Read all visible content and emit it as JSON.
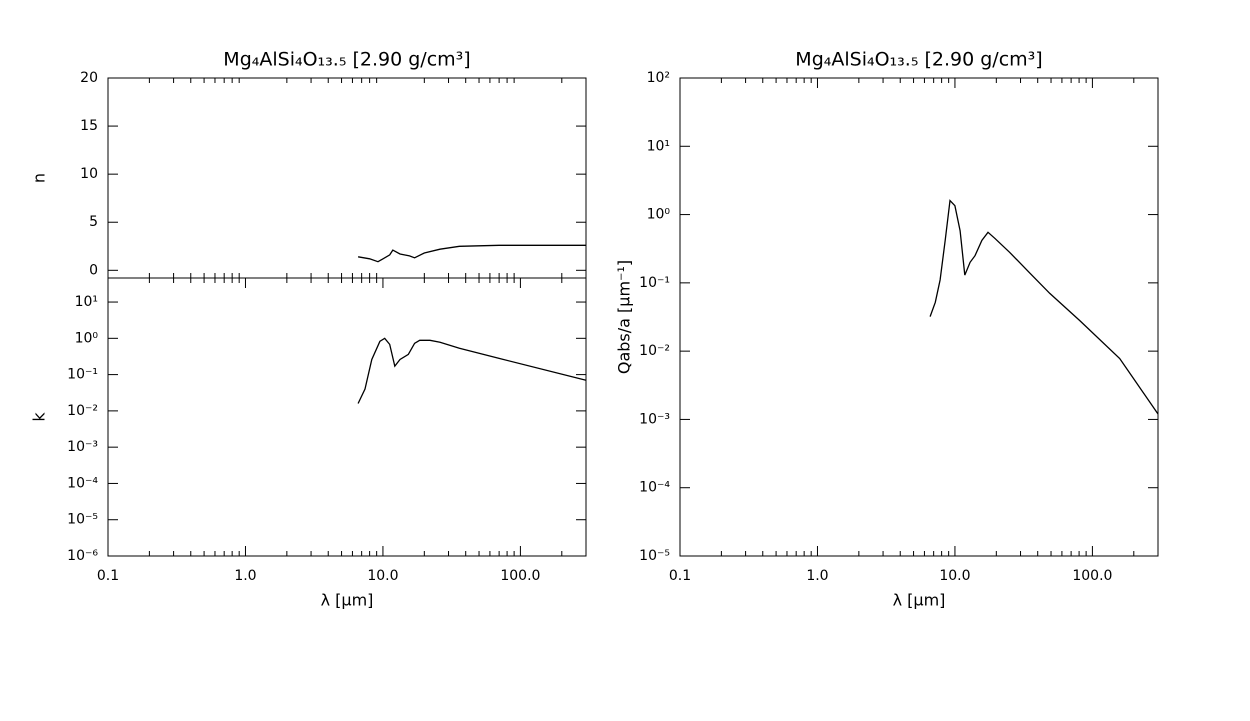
{
  "chart_data": [
    {
      "type": "line",
      "title": "Mg₄AlSi₄O₁₃.₅ [2.90 g/cm³]",
      "ylabel": "n",
      "color": "#000000",
      "xlog": true,
      "ylog": false,
      "xlim": [
        0.1,
        300
      ],
      "ylim": [
        -0.8,
        20
      ],
      "yticks": [
        0,
        5,
        10,
        15,
        20
      ],
      "x": [
        6.6,
        8.0,
        9.2,
        11.2,
        11.8,
        13.3,
        15.6,
        17.0,
        20,
        26,
        36,
        70,
        300
      ],
      "values": [
        1.4,
        1.2,
        0.9,
        1.6,
        2.1,
        1.7,
        1.5,
        1.3,
        1.8,
        2.2,
        2.5,
        2.6,
        2.6
      ]
    },
    {
      "type": "line",
      "ylabel": "k",
      "xlabel": "λ [μm]",
      "color": "#000000",
      "xlog": true,
      "ylog": true,
      "xlim": [
        0.1,
        300
      ],
      "ylim": [
        1e-06,
        46
      ],
      "xticks": [
        0.1,
        {
          "value": 1,
          "label": "1.0"
        },
        {
          "value": 10,
          "label": "10.0"
        },
        {
          "value": 100,
          "label": "100.0"
        }
      ],
      "yticks": [
        {
          "value": 10,
          "label": "10¹"
        },
        {
          "value": 1,
          "label": "10⁰"
        },
        {
          "value": 0.1,
          "label": "10⁻¹"
        },
        {
          "value": 0.01,
          "label": "10⁻²"
        },
        {
          "value": 0.001,
          "label": "10⁻³"
        },
        {
          "value": 0.0001,
          "label": "10⁻⁴"
        },
        {
          "value": 1e-05,
          "label": "10⁻⁵"
        },
        {
          "value": 1e-06,
          "label": "10⁻⁶"
        }
      ],
      "x": [
        6.6,
        7.4,
        8.3,
        9.5,
        10.3,
        11.2,
        12.2,
        13.3,
        15.3,
        17,
        18.5,
        22,
        26,
        36,
        70,
        300
      ],
      "values": [
        0.016,
        0.04,
        0.26,
        0.83,
        1.0,
        0.68,
        0.17,
        0.26,
        0.36,
        0.73,
        0.88,
        0.88,
        0.78,
        0.53,
        0.28,
        0.07
      ]
    },
    {
      "type": "line",
      "title": "Mg₄AlSi₄O₁₃.₅ [2.90 g/cm³]",
      "ylabel": "Qabs/a [μm⁻¹]",
      "xlabel": "λ [μm]",
      "color": "#000000",
      "xlog": true,
      "ylog": true,
      "xlim": [
        0.1,
        300
      ],
      "ylim": [
        1e-05,
        100
      ],
      "xticks": [
        0.1,
        {
          "value": 1,
          "label": "1.0"
        },
        {
          "value": 10,
          "label": "10.0"
        },
        {
          "value": 100,
          "label": "100.0"
        }
      ],
      "yticks": [
        {
          "value": 100,
          "label": "10²"
        },
        {
          "value": 10,
          "label": "10¹"
        },
        {
          "value": 1,
          "label": "10⁰"
        },
        {
          "value": 0.1,
          "label": "10⁻¹"
        },
        {
          "value": 0.01,
          "label": "10⁻²"
        },
        {
          "value": 0.001,
          "label": "10⁻³"
        },
        {
          "value": 0.0001,
          "label": "10⁻⁴"
        },
        {
          "value": 1e-05,
          "label": "10⁻⁵"
        }
      ],
      "x": [
        6.6,
        7.2,
        7.8,
        8.5,
        9.2,
        10.0,
        10.9,
        11.8,
        12.9,
        14.0,
        15.7,
        17.4,
        19.5,
        25,
        35,
        49,
        81,
        158,
        300
      ],
      "values": [
        0.032,
        0.052,
        0.11,
        0.42,
        1.6,
        1.35,
        0.58,
        0.13,
        0.2,
        0.25,
        0.42,
        0.55,
        0.45,
        0.28,
        0.14,
        0.07,
        0.028,
        0.0078,
        0.0012
      ]
    }
  ]
}
